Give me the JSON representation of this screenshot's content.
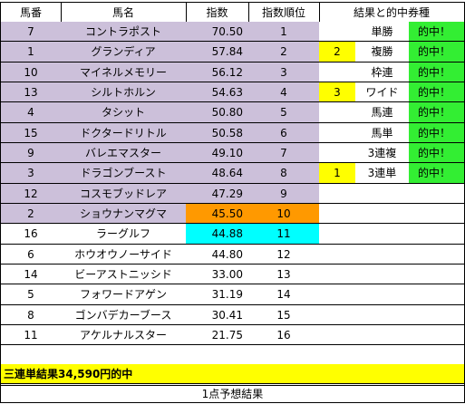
{
  "headers": [
    "馬番",
    "馬名",
    "指数",
    "指数順位",
    "結果と的中券種"
  ],
  "rows": [
    {
      "no": "7",
      "name": "コントラポスト",
      "index": "70.50",
      "rank": "1",
      "mark": "",
      "bet": "単勝",
      "hit": "的中！",
      "row_color": "#ccc0da"
    },
    {
      "no": "1",
      "name": "グランディア",
      "index": "57.84",
      "rank": "2",
      "mark": "2",
      "bet": "複勝",
      "hit": "的中！",
      "row_color": "#ccc0da"
    },
    {
      "no": "10",
      "name": "マイネルメモリー",
      "index": "56.12",
      "rank": "3",
      "mark": "",
      "bet": "枠連",
      "hit": "的中！",
      "row_color": "#ccc0da"
    },
    {
      "no": "13",
      "name": "シルトホルン",
      "index": "54.63",
      "rank": "4",
      "mark": "3",
      "bet": "ワイド",
      "hit": "的中！",
      "row_color": "#ccc0da"
    },
    {
      "no": "4",
      "name": "タシット",
      "index": "50.80",
      "rank": "5",
      "mark": "",
      "bet": "馬連",
      "hit": "的中！",
      "row_color": "#ccc0da"
    },
    {
      "no": "15",
      "name": "ドクタードリトル",
      "index": "50.58",
      "rank": "6",
      "mark": "",
      "bet": "馬単",
      "hit": "的中！",
      "row_color": "#ccc0da"
    },
    {
      "no": "9",
      "name": "バレエマスター",
      "index": "49.10",
      "rank": "7",
      "mark": "",
      "bet": "3連複",
      "hit": "的中！",
      "row_color": "#ccc0da"
    },
    {
      "no": "3",
      "name": "ドラゴンブースト",
      "index": "48.64",
      "rank": "8",
      "mark": "1",
      "bet": "3連単",
      "hit": "的中！",
      "row_color": "#ccc0da"
    },
    {
      "no": "12",
      "name": "コスモブッドレア",
      "index": "47.29",
      "rank": "9",
      "mark": "",
      "bet": "",
      "hit": "",
      "row_color": "#ccc0da"
    },
    {
      "no": "2",
      "name": "ショウナンマグマ",
      "index": "45.50",
      "rank": "10",
      "mark": "",
      "bet": "",
      "hit": "",
      "row_color": "#ccc0da",
      "highlight": "#ff9900"
    },
    {
      "no": "16",
      "name": "ラーグルフ",
      "index": "44.88",
      "rank": "11",
      "mark": "",
      "bet": "",
      "hit": "",
      "row_color": "#ffffff",
      "highlight": "#00ffff"
    },
    {
      "no": "6",
      "name": "ホウオウノーサイド",
      "index": "44.80",
      "rank": "12",
      "mark": "",
      "bet": "",
      "hit": "",
      "row_color": "#ffffff"
    },
    {
      "no": "14",
      "name": "ビーアストニッシド",
      "index": "33.00",
      "rank": "13",
      "mark": "",
      "bet": "",
      "hit": "",
      "row_color": "#ffffff"
    },
    {
      "no": "5",
      "name": "フォワードアゲン",
      "index": "31.19",
      "rank": "14",
      "mark": "",
      "bet": "",
      "hit": "",
      "row_color": "#ffffff"
    },
    {
      "no": "8",
      "name": "ゴンバデカーブース",
      "index": "30.41",
      "rank": "15",
      "mark": "",
      "bet": "",
      "hit": "",
      "row_color": "#ffffff"
    },
    {
      "no": "11",
      "name": "アケルナルスター",
      "index": "21.75",
      "rank": "16",
      "mark": "",
      "bet": "",
      "hit": "",
      "row_color": "#ffffff"
    },
    {
      "no": "",
      "name": "",
      "index": "",
      "rank": "",
      "mark": "",
      "bet": "",
      "hit": "",
      "row_color": "#ffffff"
    },
    {
      "no": "",
      "name": "",
      "index": "",
      "rank": "",
      "mark": "",
      "bet": "",
      "hit": "",
      "row_color": "#ffffff"
    }
  ],
  "summary": "三連単結果34,590円的中",
  "footer": "1点予想結果",
  "colors": {
    "lavender": "#ccc0da",
    "orange": "#ff9900",
    "cyan": "#00ffff",
    "yellow": "#ffff00",
    "green": "#33ee33"
  }
}
